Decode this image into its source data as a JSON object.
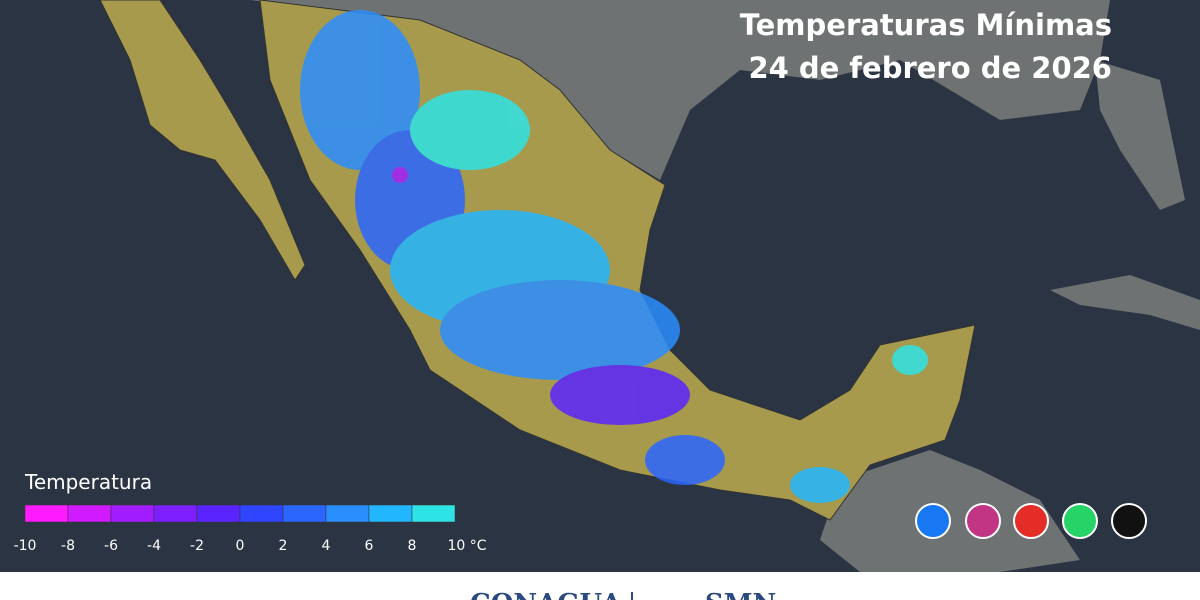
{
  "header": {
    "title_lines": [
      "Temperaturas Mínimas",
      "24 de febrero de 2026"
    ]
  },
  "legend": {
    "title": "Temperatura",
    "colors": [
      "#ff1aff",
      "#d01aff",
      "#a11cff",
      "#7d1fff",
      "#5a24ff",
      "#2f45ff",
      "#2a66ff",
      "#2a8eff",
      "#22b6ff",
      "#2ee3e6"
    ],
    "ticks": [
      "-10",
      "-8",
      "-6",
      "-4",
      "-2",
      "0",
      "2",
      "4",
      "6",
      "8",
      "10 °C"
    ]
  },
  "footer": {
    "logos": [
      "CONAGUA",
      "SMN"
    ]
  }
}
